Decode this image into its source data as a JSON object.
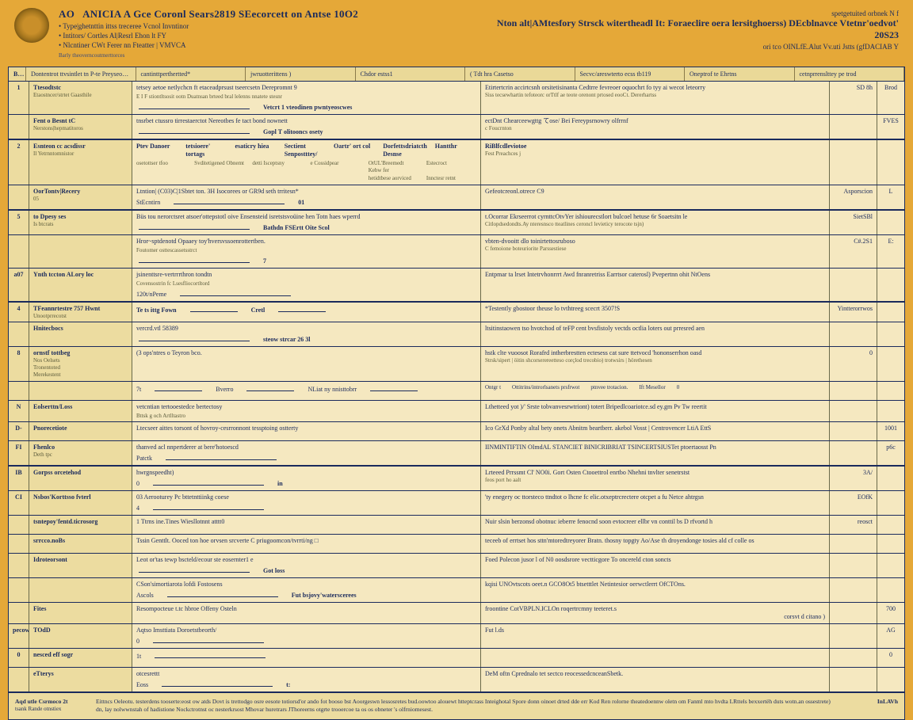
{
  "colors": {
    "bg": "#e5a838",
    "paper": "#f5e8c0",
    "ink": "#1a2a5c",
    "shade": "#ecdca0"
  },
  "header": {
    "code": "AO",
    "title": "ANICIA A Gce Coronl Sears2819 SEecorcett on Antse 10O2",
    "sub1": "Type|ghetnttin ittss treceree Vcnol Invntinor",
    "sub2": "Intitors/ Cortles Al|Resrl Ehon lt FY",
    "sub3": "Nlcntiner CWt Ferer nn Fteatter | VMVCA",
    "right_top": "spetgetuited orbnek N f",
    "right_main": "Nton alt|AMtesfory Strsck witertheadl It: Foraeclire oera lersitghoerss) DEcblnavce Vtetnr'oedvot' 20S23",
    "right_sub": "ori tco OINLfE.Alut Vv.uti Jstts (gfDACIAB Y",
    "stamp": "Barly theoverncoutmerttorces"
  },
  "tabs": [
    "BB",
    "Dontentrot ttvsintlet tn P-te Preyseosex*",
    "cantinttperthertted*",
    "jwruotterittens )",
    "Chdor estss1",
    "( Tdt hra Casetso",
    "Secvc/areswterto ecss tb119",
    "Oneptrof te Ehrtns",
    "cetnprrenslttey pe trod"
  ],
  "rows": [
    {
      "n": "1",
      "side": "Ttesodtstc",
      "side2": "Etaostncer/strtet Gaasthile",
      "m1": "tetsey aetoe netlychcn ft etaceadprsust tseercsetn Derepromnt 9",
      "m2": "E I F stiontltsosit ootn Duatnsan brteed bral lelenns nnatete stesnr",
      "mr": "Vetcrt 1 vteodinen pwntyeoscwes",
      "r1": "Etirtertcrin accirtcsnh orsitetisinanta Cedtrre fevreoer oquochrt fo tyy ai wecot leteorry",
      "r2": "Siss tecsewhartin tefoteorc orTtlf ae teote orenont prtosed eooCt. Dererhartss",
      "v1": "SD 8h",
      "v2": "",
      "x": "Brod"
    },
    {
      "n": "",
      "side": "Fent o Besnt tC",
      "side2": "Nerstons|hepmatitoros",
      "m1": "tnsrbet ctussro tirrestaerctot Nereotbes fe tact bond nownett",
      "m2": "",
      "mr": "Gopl T olitooncs osety",
      "r1": "ectDnt Chearceewgttg てose/ Bei Fereypsrnowry olfrrnf",
      "r2": "c Foucrnton",
      "v1": "",
      "v2": "",
      "x": "FVES"
    },
    {
      "n": "2",
      "side": "Esnteon cc acsdissr",
      "side2": "Il   Yetrnntomnistor",
      "m_cols": [
        "Ptev Danoer",
        "tetsioere' tortags",
        "esaticry hiea",
        "Sectient Senpostttey/",
        "Oartr' ort col",
        "Dorfettsdriatcth Desnse",
        "Hantthr"
      ],
      "m_cols2": [
        "osetottser tfoo",
        "Svditetigened Obnemt",
        "detti Isceptsny",
        "e Cossidpear",
        "OtUL'Breemedt Kebw fer",
        "Estecroct"
      ],
      "m_cols3": [
        "",
        "",
        "",
        "",
        "hetidtbese aorviced",
        "Innctesr retnt"
      ],
      "last": "RiBlfcdleviotoe",
      "last2": "Fest Preachces j"
    },
    {
      "n": "",
      "side": "OorTontv|Recery",
      "side2": "05",
      "m1": "Ltntion| (C03)C|1Sbtet ton. 3H Isocorees or GR9d seth trritesn*",
      "mr": "01",
      "mc": "StEcntirn",
      "r1": "Gefeotcreonl.otrece C9",
      "v1": "Asporscion",
      "x": "L"
    },
    {
      "n": "5",
      "side": "to Dpesy ses",
      "side2": "Is btcrats",
      "m1": "Büs tou nerorctsret atsoer'ottepstotl oive Ensensteid isretstsvoüine hen Totn haes wperrd",
      "mr": "Bathdn FSErtt Oite Scol",
      "r1": "t.Ocorrar Ekrseerrot cyrnttcOtvYer ishiourecstlort bulcoel hetuse 6r Soaetsitn le",
      "r2": "Citlopdsedondts.Ay nteresnsco tteatlines ceroncl levieticy terocote tsjn)",
      "v1": "SietSBl",
      "x": ""
    },
    {
      "n": "",
      "side": "",
      "m1": "Hror~sptdenotd Opaaey toy'hversvssoenrottertben.",
      "m2": "Foutomer osttescassetsstrct",
      "mr": "7",
      "r1": "vbten-dvooitt dlo toinirtettosruboso",
      "r2": "C femoione boteuriorite Parssestiese",
      "v1": "C#.2S1",
      "x": "E: "
    },
    {
      "n": "a07",
      "side": "Ynth tccton   ALory loc",
      "m1": "jsinenttsre-vertrrrthron tondtn",
      "m2": "Covensostrin  fc Lsesfliocortltord",
      "mc": "120t/nPeme",
      "mr": "",
      "r1": "Entpmar ta lrset Intetrvhonrrrt Awd fnranretriss Earrtsor caterosl) Pvepertnn ohit NtOens",
      "v1": "",
      "x": ""
    },
    {
      "n": "4",
      "side": "TFeannrtestre 757 Hwnt",
      "side2": "Unootprrecotst",
      "m_head": [
        "Te  ts ittg Fown",
        "Cretl"
      ],
      "r1": "*Testently gbostoor theuse lo tvthtreeg scecrt 3507!S",
      "v1": "Yintterorrwos",
      "x": ""
    },
    {
      "n": "",
      "side": "Hnitecbocs",
      "m1": "vercrd.vtl 58389",
      "mr": "steow strcar  26 3l",
      "r1": "ltsitinstaowen tso hvotchod of teFP cent bvsfistoly vectds octlia loters out prresred aen",
      "v1": "",
      "x": ""
    },
    {
      "n": "8",
      "side": "ornstf tottbeg",
      "side2": "Nos Oelsets",
      "side3": "Tronentoted",
      "side4": "Merekestent",
      "m1": "(3 ops'ntres o Teyron bco.",
      "r1": "hstk clte vuoosot Rorafrd intherbrestten ectesess cat sure ttetvocd 'hononserrhon oasd",
      "r2": "Strsk/sipert | öitin shcorserereetteso corçlod trecobio) trotwsirs | hörethesen",
      "v1": "0",
      "x": ""
    },
    {
      "n": "",
      "side": "",
      "m_inline": [
        "7t",
        "Bverro",
        "NLiat ny   nnisttobrr"
      ],
      "r_inline": [
        "Ontgr t",
        "Ottitrins/introrlsanets prsfrwot",
        "ptnvee trotacion.",
        "Ift Mesellor",
        "0"
      ],
      "v1": "",
      "x": ""
    },
    {
      "n": "N",
      "side": "Eolserttn/Loss",
      "m1": "vetcntian tertooestedce bertectosy",
      "m2": "Bttsk g och Artlltastro",
      "r1": "Lthetteed yot )/' Srste tobvanvesrwtriont) totert Bripedlcoariotce.sd ey.gm Pv Tw reertit",
      "v1": "",
      "x": ""
    },
    {
      "n": "D-",
      "side": "Pnorecetiote",
      "m1": "Ltecseer aittes torsont of hovroy-cesrronnont tessptoing ostterty",
      "r1": "Ico GrXd Ponby altal bety onets Abnitm beartberr. akebol Vosst | Centrovencer LtiA EttS",
      "v1": "",
      "x": "1001"
    },
    {
      "n": "FI",
      "side": "Fhenlco",
      "side2": "Deth tpc",
      "m1": "thanved acl nnpertderer at bere'hotoescd",
      "mc": "Patctk",
      "r1": "IINMINTIFTIN OImdAL STANCIET BINICRIBRIAT TSINCERTSIUSTet ptoertaosst Pn",
      "v1": "",
      "x": "p6c"
    },
    {
      "n": "IB",
      "side": "Gorpss orcetehod",
      "m1": "hwrgnspeedht)",
      "mc": "0",
      "mr": "in",
      "r1": "Lrteeed Prrssmt Cl' NO0i. Gort Osten Ctooettrol enrtbo Nhehni tnvlter senetrstst",
      "r2": "feos port ho aalt",
      "v1": "3A/",
      "x": ""
    },
    {
      "n": "CI",
      "side": "Nsbos'Korttsso fvterl",
      "m1": "03 Aerooturey Pc bttetnttiinkg coese",
      "mc": "4",
      "r1": "'ty enegery oc ttorsteco ttndtot o lhcne fc elic.otxeptrcrectere otcpet a fu Netce ahtrgsn",
      "v1": "EOfK",
      "x": ""
    },
    {
      "n": "",
      "side": "tsntepoy'fentd.ticrosorg",
      "m1": "1 Ttrns ine.Tines Wiesllotnnt atttt0",
      "mc": "",
      "r1": "Nuir slsin berzonsd obotnuc ieberre fenocnd soon evtocreer ellbr vn conttil bs D rfvortd h",
      "v1": "reosct",
      "x": ""
    },
    {
      "n": "",
      "side": "srrcco.noBs",
      "m1": "Tssin Genttlt. Ooced ton hoe orvsen srcverte    C priugoomcon/tvrrti/ng  □",
      "r1": "teceeb of errtset hos sttn'mtoredtreyorer Bratn. thosny topgty Ao/Ase th droyendonge tosies ald cf colle os",
      "v1": "",
      "x": ""
    },
    {
      "n": "",
      "side": "Idroteorsont",
      "m1": "Leot or'tas tewp bscteld/ecour ste eosernter1 e",
      "mr": "Got loss",
      "r1": "Foed Polecon jusor l of N0 oosdsrore vectticgore To oncereld cton soncts",
      "v1": "",
      "x": ""
    },
    {
      "n": "",
      "side": "",
      "m1": "CSon'simortiarota lofdi Fostosens",
      "mc": "Ascols",
      "mr": "Fut bsjovy'waterscerees",
      "r1": "kqisi UNOvtscots oeet.n GCO8Ot5 btsetttlet Netintesior oerwctlerrt OfCTOns.",
      "v1": "",
      "x": ""
    },
    {
      "n": "",
      "side": "Fites",
      "m1": "Resompocteue t.tc hbroe Offeny Osteln",
      "r1": "froontine CotVBPLN.ICLOn roqertrcmny teeteret.s",
      "rr": "corsvt d citano )",
      "v1": "",
      "x": "700"
    },
    {
      "n": "pecowl",
      "side": "TOdD",
      "m1": "Aqtso Imsttiata Doroetstbeorth/",
      "mc": "0",
      "r1": "Fut l.ds",
      "v1": "",
      "x": "AG"
    },
    {
      "n": "0",
      "side": "nesced  eff sogr",
      "m1": "",
      "mc": "1t",
      "r1": "",
      "v1": "",
      "x": "0"
    },
    {
      "n": "",
      "side": "eTterys",
      "m1": "otcesrettt",
      "mc": "Eoss",
      "mr": "t:",
      "r1": "DeM oftn Cprednalo tet sectco reocessedcnceanSbetk.",
      "v1": "",
      "x": ""
    }
  ],
  "footer": {
    "num": "Aqd utle Csrmoco 2t",
    "num2": "tsank Rande otnstiex",
    "text": "Eittncs Oeleotu. testerdens tooserte:eost ow atds Dovt is trettodgo osre eesote totiorsd'or ando fot booso bst Aoorgeswn lessosretes bud.oowtoo alouewt htteptcrass Inteighotal Spore donn oinoet drted dde err Kod Ren rolorne theatedoennw oletn om Fanml mto hvdta LRttels bexxertëh duts wotn.an ossestrete)",
    "text2": "dn, lay nolwwnstah of hadistione Nockctrotnst oc nesterkrsost Mhovar huretrars JThoreerns otgrte trooercoe ta os os obneter 's olfrniomesest.",
    "right": "InLAVh"
  }
}
